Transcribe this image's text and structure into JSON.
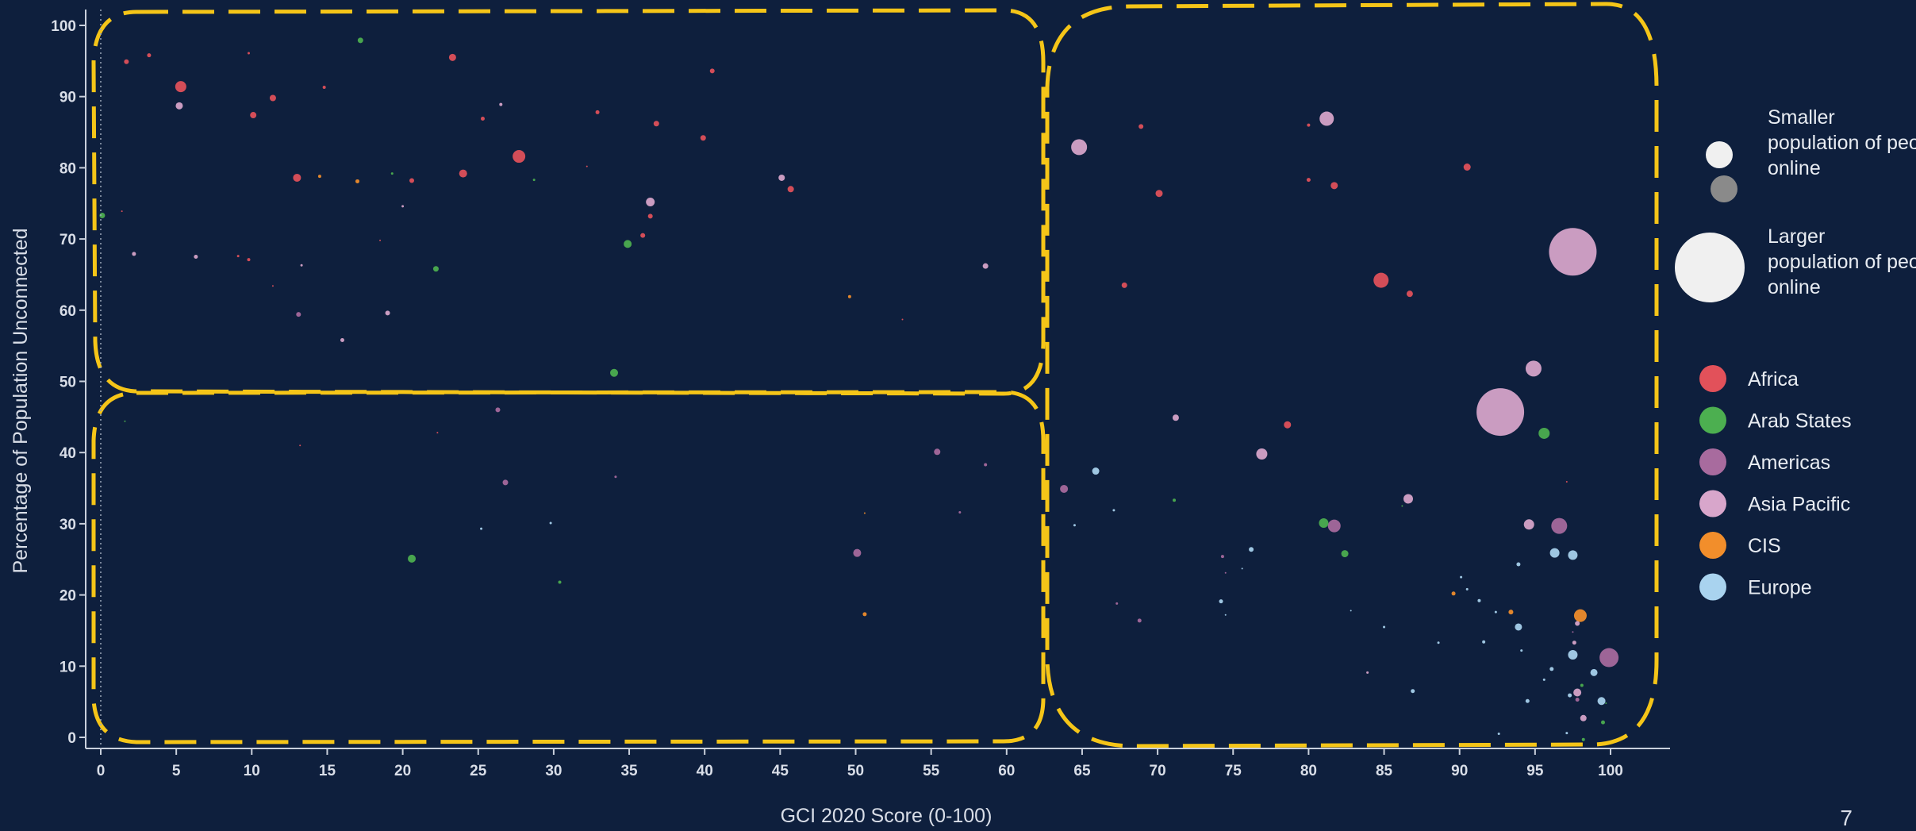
{
  "page_number": "7",
  "chart_data": {
    "type": "scatter",
    "title": "",
    "xlabel": "GCI 2020 Score (0-100)",
    "ylabel": "Percentage of Population Unconnected",
    "xlim": [
      0,
      100
    ],
    "ylim": [
      0,
      100
    ],
    "xticks": [
      "0",
      "5",
      "10",
      "15",
      "20",
      "25",
      "30",
      "35",
      "40",
      "45",
      "50",
      "55",
      "60",
      "65",
      "70",
      "75",
      "80",
      "85",
      "90",
      "95",
      "100"
    ],
    "yticks": [
      "0",
      "10",
      "20",
      "30",
      "40",
      "50",
      "60",
      "70",
      "80",
      "90",
      "100"
    ],
    "grid": false,
    "legend_position": "right",
    "colors": {
      "Africa": "#e2515a",
      "Arab States": "#4caf50",
      "Americas": "#a86b9e",
      "Asia Pacific": "#d8a6cb",
      "CIS": "#f28e2b",
      "Europe": "#a9d3ef",
      "annotation": "#f5c518"
    },
    "size_legend": {
      "small_label": "Smaller population of people online",
      "large_label": "Larger population of people online",
      "small_colors": [
        "#f0f0f0",
        "#8a8a8a"
      ],
      "large_color": "#f0f0f0"
    },
    "series": [
      {
        "name": "Africa",
        "points": [
          {
            "x": 1.7,
            "y": 94.9,
            "s": 3
          },
          {
            "x": 3.2,
            "y": 95.8,
            "s": 2.5
          },
          {
            "x": 5.3,
            "y": 91.4,
            "s": 7
          },
          {
            "x": 9.8,
            "y": 96.1,
            "s": 1.5
          },
          {
            "x": 10.1,
            "y": 87.4,
            "s": 4
          },
          {
            "x": 11.4,
            "y": 89.8,
            "s": 4
          },
          {
            "x": 14.8,
            "y": 91.3,
            "s": 2
          },
          {
            "x": 13,
            "y": 78.6,
            "s": 5
          },
          {
            "x": 23.3,
            "y": 95.5,
            "s": 4.5
          },
          {
            "x": 25.3,
            "y": 86.9,
            "s": 2.5
          },
          {
            "x": 24,
            "y": 79.2,
            "s": 5
          },
          {
            "x": 27.7,
            "y": 81.6,
            "s": 8
          },
          {
            "x": 20.6,
            "y": 78.2,
            "s": 3
          },
          {
            "x": 32.9,
            "y": 87.8,
            "s": 2.5
          },
          {
            "x": 36.8,
            "y": 86.2,
            "s": 3.5
          },
          {
            "x": 39.9,
            "y": 84.2,
            "s": 3.5
          },
          {
            "x": 40.5,
            "y": 93.6,
            "s": 3
          },
          {
            "x": 45.7,
            "y": 77,
            "s": 4
          },
          {
            "x": 36.4,
            "y": 73.2,
            "s": 3
          },
          {
            "x": 35.9,
            "y": 70.5,
            "s": 3
          },
          {
            "x": 9.8,
            "y": 67.1,
            "s": 2
          },
          {
            "x": 9.1,
            "y": 67.6,
            "s": 1.5
          },
          {
            "x": 11.4,
            "y": 63.4,
            "s": 1
          },
          {
            "x": 18.5,
            "y": 69.8,
            "s": 1
          },
          {
            "x": 32.2,
            "y": 80.2,
            "s": 1
          },
          {
            "x": 1.4,
            "y": 73.9,
            "s": 1
          },
          {
            "x": 53.1,
            "y": 58.7,
            "s": 1
          },
          {
            "x": 68.9,
            "y": 85.8,
            "s": 3
          },
          {
            "x": 70.1,
            "y": 76.4,
            "s": 4.5
          },
          {
            "x": 67.8,
            "y": 63.5,
            "s": 3.5
          },
          {
            "x": 80,
            "y": 78.3,
            "s": 2.5
          },
          {
            "x": 80,
            "y": 86,
            "s": 2
          },
          {
            "x": 81.7,
            "y": 77.5,
            "s": 4.5
          },
          {
            "x": 84.8,
            "y": 64.2,
            "s": 9.5
          },
          {
            "x": 86.7,
            "y": 62.3,
            "s": 4
          },
          {
            "x": 90.5,
            "y": 80.1,
            "s": 4.5
          },
          {
            "x": 78.6,
            "y": 43.9,
            "s": 4.5
          },
          {
            "x": 97.1,
            "y": 35.9,
            "s": 1
          },
          {
            "x": 22.3,
            "y": 42.8,
            "s": 1
          },
          {
            "x": 13.2,
            "y": 41,
            "s": 1
          }
        ]
      },
      {
        "name": "Arab States",
        "points": [
          {
            "x": 0.1,
            "y": 73.3,
            "s": 3.5
          },
          {
            "x": 17.2,
            "y": 97.9,
            "s": 3.5
          },
          {
            "x": 19.3,
            "y": 79.2,
            "s": 1.5
          },
          {
            "x": 28.7,
            "y": 78.3,
            "s": 1.5
          },
          {
            "x": 22.2,
            "y": 65.8,
            "s": 3.5
          },
          {
            "x": 34.9,
            "y": 69.3,
            "s": 5
          },
          {
            "x": 34,
            "y": 51.2,
            "s": 5
          },
          {
            "x": 20.6,
            "y": 25.1,
            "s": 5
          },
          {
            "x": 30.4,
            "y": 21.8,
            "s": 2
          },
          {
            "x": 1.6,
            "y": 44.4,
            "s": 1
          },
          {
            "x": 71.1,
            "y": 33.3,
            "s": 2
          },
          {
            "x": 81,
            "y": 30.1,
            "s": 6
          },
          {
            "x": 82.4,
            "y": 25.8,
            "s": 4.5
          },
          {
            "x": 95.6,
            "y": 42.7,
            "s": 7
          },
          {
            "x": 86.2,
            "y": 32.5,
            "s": 1
          },
          {
            "x": 98.1,
            "y": 7.3,
            "s": 2
          },
          {
            "x": 98.2,
            "y": -0.3,
            "s": 2
          },
          {
            "x": 99.5,
            "y": 2.1,
            "s": 2.5
          },
          {
            "x": 99.7,
            "y": 4.8,
            "s": 1
          }
        ]
      },
      {
        "name": "Americas",
        "points": [
          {
            "x": 13.1,
            "y": 59.4,
            "s": 3
          },
          {
            "x": 26.8,
            "y": 35.8,
            "s": 3.5
          },
          {
            "x": 55.4,
            "y": 40.1,
            "s": 4
          },
          {
            "x": 50.1,
            "y": 25.9,
            "s": 5
          },
          {
            "x": 56.9,
            "y": 31.6,
            "s": 1.5
          },
          {
            "x": 58.6,
            "y": 38.3,
            "s": 2
          },
          {
            "x": 26.3,
            "y": 46,
            "s": 3
          },
          {
            "x": 34.1,
            "y": 36.6,
            "s": 1.5
          },
          {
            "x": 63.8,
            "y": 34.9,
            "s": 5
          },
          {
            "x": 81.7,
            "y": 29.7,
            "s": 8
          },
          {
            "x": 74.3,
            "y": 25.4,
            "s": 2
          },
          {
            "x": 74.5,
            "y": 23.1,
            "s": 1
          },
          {
            "x": 67.3,
            "y": 18.8,
            "s": 1.5
          },
          {
            "x": 68.8,
            "y": 16.4,
            "s": 2.5
          },
          {
            "x": 96.6,
            "y": 29.7,
            "s": 10
          },
          {
            "x": 99.9,
            "y": 11.2,
            "s": 12
          },
          {
            "x": 97.8,
            "y": 5.3,
            "s": 2.5
          },
          {
            "x": 97.5,
            "y": 14.8,
            "s": 1
          }
        ]
      },
      {
        "name": "Asia Pacific",
        "points": [
          {
            "x": 5.2,
            "y": 88.7,
            "s": 4.5
          },
          {
            "x": 26.5,
            "y": 88.9,
            "s": 2
          },
          {
            "x": 36.4,
            "y": 75.2,
            "s": 5.5
          },
          {
            "x": 45.1,
            "y": 78.6,
            "s": 4
          },
          {
            "x": 58.6,
            "y": 66.2,
            "s": 3.5
          },
          {
            "x": 19,
            "y": 59.6,
            "s": 3
          },
          {
            "x": 16,
            "y": 55.8,
            "s": 2.5
          },
          {
            "x": 6.3,
            "y": 67.5,
            "s": 2.5
          },
          {
            "x": 2.2,
            "y": 67.9,
            "s": 2.5
          },
          {
            "x": 20,
            "y": 74.6,
            "s": 1.5
          },
          {
            "x": 13.3,
            "y": 66.3,
            "s": 1.5
          },
          {
            "x": 64.8,
            "y": 82.9,
            "s": 10
          },
          {
            "x": 81.2,
            "y": 86.9,
            "s": 9
          },
          {
            "x": 71.2,
            "y": 44.9,
            "s": 4
          },
          {
            "x": 76.9,
            "y": 39.8,
            "s": 7
          },
          {
            "x": 86.6,
            "y": 33.5,
            "s": 6
          },
          {
            "x": 97.5,
            "y": 68.2,
            "s": 30
          },
          {
            "x": 92.7,
            "y": 45.7,
            "s": 30
          },
          {
            "x": 94.9,
            "y": 51.8,
            "s": 10
          },
          {
            "x": 94.6,
            "y": 29.9,
            "s": 6.5
          },
          {
            "x": 83.9,
            "y": 9.1,
            "s": 1.5
          },
          {
            "x": 97.8,
            "y": 6.3,
            "s": 5
          },
          {
            "x": 98.2,
            "y": 2.7,
            "s": 4
          },
          {
            "x": 97.8,
            "y": 16,
            "s": 3
          },
          {
            "x": 97.6,
            "y": 13.3,
            "s": 2.5
          }
        ]
      },
      {
        "name": "CIS",
        "points": [
          {
            "x": 14.5,
            "y": 78.8,
            "s": 2
          },
          {
            "x": 17,
            "y": 78.1,
            "s": 2.5
          },
          {
            "x": 49.6,
            "y": 61.9,
            "s": 2
          },
          {
            "x": 50.6,
            "y": 17.3,
            "s": 2.5
          },
          {
            "x": 50.6,
            "y": 31.5,
            "s": 1
          },
          {
            "x": 89.6,
            "y": 20.2,
            "s": 2.5
          },
          {
            "x": 93.4,
            "y": 17.6,
            "s": 3
          },
          {
            "x": 98,
            "y": 17.1,
            "s": 8
          }
        ]
      },
      {
        "name": "Europe",
        "points": [
          {
            "x": 25.2,
            "y": 29.3,
            "s": 1.5
          },
          {
            "x": 29.8,
            "y": 30.1,
            "s": 1.5
          },
          {
            "x": 65.9,
            "y": 37.4,
            "s": 4.5
          },
          {
            "x": 76.2,
            "y": 26.4,
            "s": 3
          },
          {
            "x": 75.6,
            "y": 23.7,
            "s": 1
          },
          {
            "x": 74.5,
            "y": 17.2,
            "s": 1
          },
          {
            "x": 74.2,
            "y": 19.1,
            "s": 2.5
          },
          {
            "x": 64.5,
            "y": 29.8,
            "s": 1.5
          },
          {
            "x": 67.1,
            "y": 31.9,
            "s": 1.5
          },
          {
            "x": 86.9,
            "y": 6.5,
            "s": 2.5
          },
          {
            "x": 85,
            "y": 15.5,
            "s": 1.5
          },
          {
            "x": 88.6,
            "y": 13.3,
            "s": 1.5
          },
          {
            "x": 90.1,
            "y": 22.5,
            "s": 1.5
          },
          {
            "x": 90.5,
            "y": 20.8,
            "s": 1.5
          },
          {
            "x": 91.3,
            "y": 19.2,
            "s": 2
          },
          {
            "x": 91.6,
            "y": 13.4,
            "s": 2
          },
          {
            "x": 92.4,
            "y": 17.6,
            "s": 1.5
          },
          {
            "x": 93.9,
            "y": 24.3,
            "s": 2.5
          },
          {
            "x": 93.9,
            "y": 15.5,
            "s": 4.5
          },
          {
            "x": 94.1,
            "y": 12.2,
            "s": 1.5
          },
          {
            "x": 94.5,
            "y": 5.1,
            "s": 2.5
          },
          {
            "x": 95.6,
            "y": 8.1,
            "s": 1.5
          },
          {
            "x": 96.1,
            "y": 9.6,
            "s": 2.5
          },
          {
            "x": 96.3,
            "y": 25.9,
            "s": 6
          },
          {
            "x": 97.5,
            "y": 25.6,
            "s": 6
          },
          {
            "x": 97.5,
            "y": 11.6,
            "s": 6
          },
          {
            "x": 97.3,
            "y": 5.9,
            "s": 2.5
          },
          {
            "x": 98.9,
            "y": 9.1,
            "s": 4.5
          },
          {
            "x": 99.4,
            "y": 5.1,
            "s": 5
          },
          {
            "x": 92.6,
            "y": 0.5,
            "s": 1.5
          },
          {
            "x": 97.1,
            "y": 0.6,
            "s": 1.5
          },
          {
            "x": 82.8,
            "y": 17.8,
            "s": 1
          }
        ]
      }
    ]
  }
}
